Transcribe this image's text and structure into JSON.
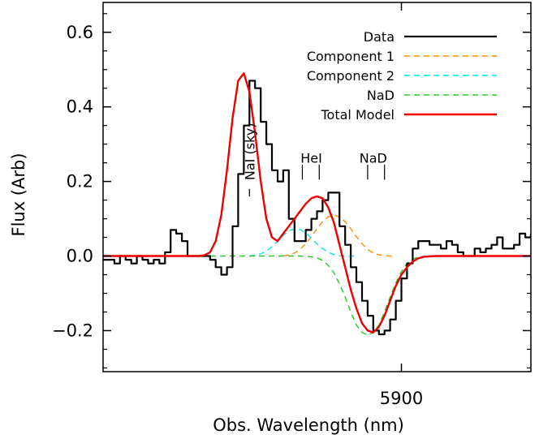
{
  "chart_data": {
    "type": "line",
    "xlabel": "Obs. Wavelength (nm)",
    "ylabel": "Flux (Arb)",
    "xlim": [
      5873.5,
      5911.5
    ],
    "ylim": [
      -0.31,
      0.68
    ],
    "x_tick_values": [
      5900
    ],
    "x_tick_labels": [
      "5900"
    ],
    "y_tick_values": [
      -0.2,
      0.0,
      0.2,
      0.4,
      0.6
    ],
    "y_tick_labels": [
      "−0.2",
      "0.0",
      "0.2",
      "0.4",
      "0.6"
    ],
    "grid": false,
    "legend_position": "top-right",
    "series": [
      {
        "name": "Data",
        "color": "#000000",
        "dash": "solid",
        "width": 2.2,
        "step": true,
        "x": [
          5873.5,
          5874.0,
          5874.5,
          5875.0,
          5875.5,
          5876.0,
          5876.5,
          5877.0,
          5877.5,
          5878.0,
          5878.5,
          5879.0,
          5879.5,
          5880.0,
          5880.5,
          5881.0,
          5881.5,
          5882.0,
          5882.5,
          5883.0,
          5883.5,
          5884.0,
          5884.5,
          5885.0,
          5885.5,
          5886.0,
          5886.5,
          5887.0,
          5887.5,
          5888.0,
          5888.5,
          5889.0,
          5889.5,
          5890.0,
          5890.5,
          5891.0,
          5891.5,
          5892.0,
          5892.5,
          5893.0,
          5893.5,
          5894.0,
          5894.5,
          5895.0,
          5895.5,
          5896.0,
          5896.5,
          5897.0,
          5897.5,
          5898.0,
          5898.5,
          5899.0,
          5899.5,
          5900.0,
          5900.5,
          5901.0,
          5901.5,
          5902.0,
          5902.5,
          5903.0,
          5903.5,
          5904.0,
          5904.5,
          5905.0,
          5905.5,
          5906.0,
          5906.5,
          5907.0,
          5907.5,
          5908.0,
          5908.5,
          5909.0,
          5909.5,
          5910.0,
          5910.5,
          5911.0,
          5911.5
        ],
        "y": [
          -0.01,
          -0.01,
          -0.02,
          0.0,
          -0.01,
          -0.02,
          0.0,
          -0.01,
          -0.02,
          -0.01,
          -0.02,
          0.01,
          0.07,
          0.06,
          0.04,
          0.0,
          0.0,
          0.0,
          0.0,
          -0.01,
          -0.03,
          -0.05,
          -0.03,
          0.08,
          0.22,
          0.35,
          0.47,
          0.45,
          0.36,
          0.3,
          0.23,
          0.2,
          0.23,
          0.1,
          0.04,
          0.04,
          0.07,
          0.1,
          0.12,
          0.15,
          0.17,
          0.17,
          0.08,
          0.03,
          -0.03,
          -0.07,
          -0.12,
          -0.16,
          -0.2,
          -0.21,
          -0.2,
          -0.17,
          -0.12,
          -0.06,
          -0.02,
          0.02,
          0.04,
          0.04,
          0.03,
          0.03,
          0.02,
          0.04,
          0.03,
          0.01,
          0.0,
          0.0,
          0.02,
          0.01,
          0.02,
          0.03,
          0.05,
          0.02,
          0.02,
          0.03,
          0.06,
          0.05,
          0.06
        ]
      },
      {
        "name": "Component 1",
        "color": "#FF8C00",
        "dash": "7,5",
        "width": 1.4,
        "step": false,
        "x": [
          5889.5,
          5890.0,
          5890.5,
          5891.0,
          5891.5,
          5892.0,
          5892.5,
          5893.0,
          5893.5,
          5894.0,
          5894.5,
          5895.0,
          5895.5,
          5896.0,
          5896.5,
          5897.0,
          5897.5,
          5898.0,
          5898.5,
          5899.0,
          5899.5
        ],
        "y": [
          0.0,
          0.003,
          0.008,
          0.018,
          0.033,
          0.052,
          0.073,
          0.092,
          0.105,
          0.11,
          0.105,
          0.092,
          0.073,
          0.052,
          0.033,
          0.018,
          0.008,
          0.003,
          0.001,
          0.0,
          0.0
        ]
      },
      {
        "name": "Component 2",
        "color": "#00E5EE",
        "dash": "7,5",
        "width": 1.4,
        "step": false,
        "x": [
          5886.5,
          5887.0,
          5887.5,
          5888.0,
          5888.5,
          5889.0,
          5889.5,
          5890.0,
          5890.5,
          5891.0,
          5891.5,
          5892.0,
          5892.5,
          5893.0,
          5893.5,
          5894.0,
          5894.5,
          5895.0,
          5895.5,
          5896.0
        ],
        "y": [
          0.0,
          0.002,
          0.006,
          0.013,
          0.025,
          0.04,
          0.055,
          0.067,
          0.073,
          0.071,
          0.062,
          0.048,
          0.033,
          0.02,
          0.01,
          0.004,
          0.001,
          0.0,
          0.0,
          0.0
        ]
      },
      {
        "name": "NaD",
        "color": "#22CC22",
        "dash": "7,5",
        "width": 1.4,
        "step": false,
        "x": [
          5873.5,
          5891.0,
          5892.0,
          5892.5,
          5893.0,
          5893.5,
          5894.0,
          5894.5,
          5895.0,
          5895.5,
          5896.0,
          5896.5,
          5897.0,
          5897.5,
          5898.0,
          5898.5,
          5899.0,
          5899.5,
          5900.0,
          5900.5,
          5901.0,
          5901.5,
          5902.0,
          5902.5,
          5903.0,
          5911.5
        ],
        "y": [
          0.0,
          0.0,
          -0.002,
          -0.005,
          -0.012,
          -0.025,
          -0.045,
          -0.075,
          -0.11,
          -0.15,
          -0.185,
          -0.205,
          -0.212,
          -0.205,
          -0.185,
          -0.15,
          -0.11,
          -0.072,
          -0.042,
          -0.02,
          -0.008,
          -0.003,
          -0.001,
          0.0,
          0.0,
          0.0
        ]
      },
      {
        "name": "Total Model",
        "color": "#EE0000",
        "dash": "solid",
        "width": 2.4,
        "step": false,
        "x": [
          5873.5,
          5882.0,
          5882.5,
          5883.0,
          5883.5,
          5884.0,
          5884.5,
          5885.0,
          5885.5,
          5886.0,
          5886.5,
          5887.0,
          5887.5,
          5888.0,
          5888.5,
          5889.0,
          5889.5,
          5890.0,
          5890.5,
          5891.0,
          5891.5,
          5892.0,
          5892.5,
          5893.0,
          5893.5,
          5894.0,
          5894.5,
          5895.0,
          5895.5,
          5896.0,
          5896.5,
          5897.0,
          5897.5,
          5898.0,
          5898.5,
          5899.0,
          5899.5,
          5900.0,
          5900.5,
          5901.0,
          5901.5,
          5902.0,
          5903.0,
          5911.5
        ],
        "y": [
          0.0,
          0.0,
          0.002,
          0.01,
          0.04,
          0.11,
          0.23,
          0.37,
          0.47,
          0.49,
          0.44,
          0.33,
          0.2,
          0.1,
          0.05,
          0.04,
          0.06,
          0.08,
          0.1,
          0.12,
          0.14,
          0.155,
          0.16,
          0.155,
          0.13,
          0.09,
          0.03,
          -0.03,
          -0.09,
          -0.14,
          -0.18,
          -0.2,
          -0.205,
          -0.19,
          -0.16,
          -0.12,
          -0.08,
          -0.05,
          -0.03,
          -0.015,
          -0.006,
          -0.002,
          0.0,
          0.0
        ]
      }
    ],
    "annotations": [
      {
        "text": "NaI (sky)",
        "x": 5886.5,
        "tick_x": [
          5886.6
        ],
        "rotated": true
      },
      {
        "text": "HeI",
        "x": 5892.0,
        "tick_x": [
          5891.2,
          5892.7
        ],
        "rotated": false
      },
      {
        "text": "NaD",
        "x": 5897.5,
        "tick_x": [
          5897.0,
          5898.5
        ],
        "rotated": false
      }
    ]
  }
}
